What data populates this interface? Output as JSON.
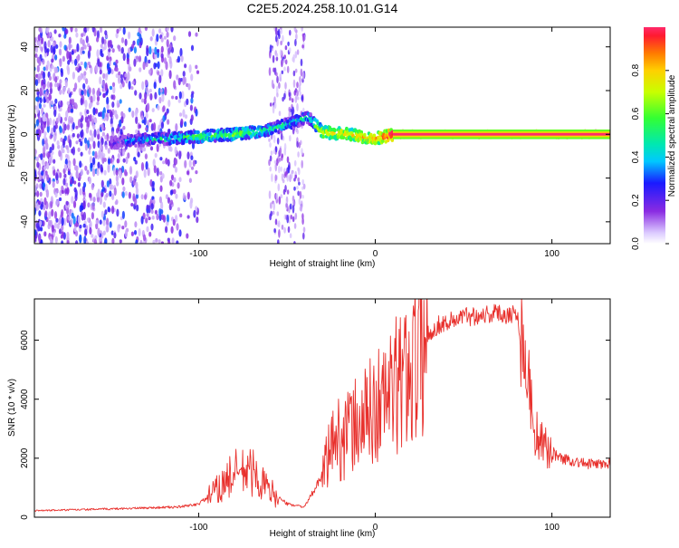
{
  "title": "C2E5.2024.258.10.01.G14",
  "chart_data": [
    {
      "type": "heatmap",
      "xlabel": "Height of straight line (km)",
      "ylabel": "Frequency (Hz)",
      "xlim": [
        -193,
        133
      ],
      "ylim": [
        -50,
        49
      ],
      "xticks": [
        -100,
        0,
        100
      ],
      "yticks": [
        -40,
        -20,
        0,
        20,
        40
      ],
      "colorbar": {
        "label": "Normalized spectral amplitude",
        "range": [
          0,
          1
        ],
        "ticks": [
          0.0,
          0.2,
          0.4,
          0.6,
          0.8
        ]
      },
      "ridge": [
        {
          "x": -150,
          "f": -4,
          "amp": 0.2
        },
        {
          "x": -140,
          "f": -3,
          "amp": 0.35
        },
        {
          "x": -120,
          "f": -2,
          "amp": 0.45
        },
        {
          "x": -100,
          "f": -1,
          "amp": 0.55
        },
        {
          "x": -80,
          "f": 0,
          "amp": 0.6
        },
        {
          "x": -60,
          "f": 2,
          "amp": 0.5
        },
        {
          "x": -45,
          "f": 6,
          "amp": 0.45
        },
        {
          "x": -38,
          "f": 8,
          "amp": 0.4
        },
        {
          "x": -30,
          "f": 1,
          "amp": 0.75
        },
        {
          "x": -15,
          "f": 0,
          "amp": 0.8
        },
        {
          "x": 0,
          "f": -2,
          "amp": 0.85
        },
        {
          "x": 10,
          "f": 0,
          "amp": 1.0
        },
        {
          "x": 133,
          "f": 0,
          "amp": 1.0
        }
      ],
      "noise_region": {
        "x": [
          -193,
          -100
        ]
      }
    },
    {
      "type": "line",
      "xlabel": "Height of straight line (km)",
      "ylabel": "SNR (10 * v/v)",
      "xlim": [
        -193,
        133
      ],
      "ylim": [
        0,
        7400
      ],
      "xticks": [
        -100,
        0,
        100
      ],
      "yticks": [
        0,
        2000,
        4000,
        6000
      ],
      "color": "#e8302c",
      "series_envelope": [
        {
          "x": -193,
          "y": 220
        },
        {
          "x": -150,
          "y": 280
        },
        {
          "x": -110,
          "y": 350
        },
        {
          "x": -100,
          "y": 450
        },
        {
          "x": -90,
          "y": 900
        },
        {
          "x": -80,
          "y": 1500
        },
        {
          "x": -70,
          "y": 1550
        },
        {
          "x": -60,
          "y": 900
        },
        {
          "x": -50,
          "y": 450
        },
        {
          "x": -40,
          "y": 350
        },
        {
          "x": -30,
          "y": 1400
        },
        {
          "x": -25,
          "y": 2500
        },
        {
          "x": -15,
          "y": 2900
        },
        {
          "x": -5,
          "y": 3400
        },
        {
          "x": 5,
          "y": 4000
        },
        {
          "x": 15,
          "y": 4600
        },
        {
          "x": 25,
          "y": 5700
        },
        {
          "x": 35,
          "y": 6500
        },
        {
          "x": 50,
          "y": 6800
        },
        {
          "x": 65,
          "y": 6900
        },
        {
          "x": 80,
          "y": 6900
        },
        {
          "x": 85,
          "y": 5500
        },
        {
          "x": 90,
          "y": 3000
        },
        {
          "x": 95,
          "y": 2400
        },
        {
          "x": 105,
          "y": 2000
        },
        {
          "x": 120,
          "y": 1800
        },
        {
          "x": 133,
          "y": 1800
        }
      ]
    }
  ]
}
